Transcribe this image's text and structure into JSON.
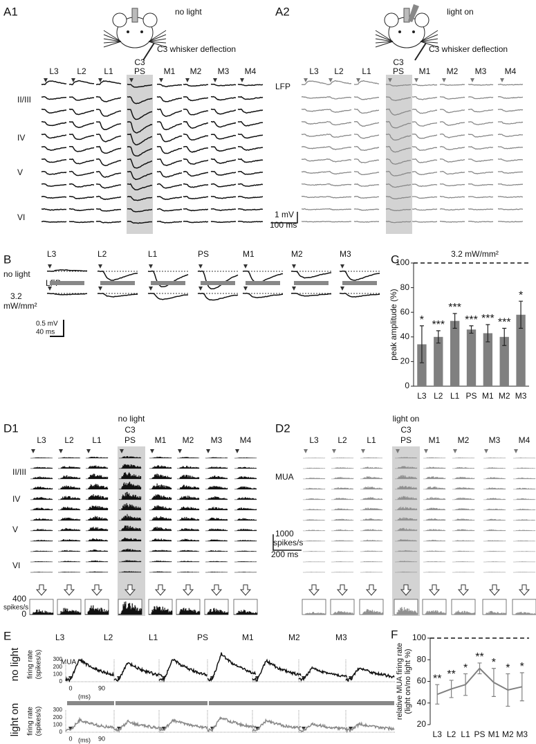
{
  "A1": {
    "label": "A1",
    "condition": "no light",
    "stimulus": "C3 whisker deflection",
    "barrel": "C3",
    "columns": [
      "L3",
      "L2",
      "L1",
      "PS",
      "M1",
      "M2",
      "M3",
      "M4"
    ],
    "layers": [
      "II/III",
      "IV",
      "V",
      "VI"
    ],
    "scale": [
      "1 mV",
      "100 ms"
    ]
  },
  "A2": {
    "label": "A2",
    "condition": "light on",
    "stimulus": "C3 whisker deflection",
    "barrel": "C3",
    "columns": [
      "L3",
      "L2",
      "L1",
      "PS",
      "M1",
      "M2",
      "M3",
      "M4"
    ],
    "signal": "LFP"
  },
  "B": {
    "label": "B",
    "columns": [
      "L3",
      "L2",
      "L1",
      "PS",
      "M1",
      "M2",
      "M3"
    ],
    "rows": [
      "no light",
      [
        "3.2",
        "mW/mm²"
      ]
    ],
    "signal": "LFP",
    "scale": [
      "0.5 mV",
      "40 ms"
    ]
  },
  "D1": {
    "label": "D1",
    "condition": "no light",
    "barrel": "C3",
    "columns": [
      "L3",
      "L2",
      "L1",
      "PS",
      "M1",
      "M2",
      "M3",
      "M4"
    ],
    "layers": [
      "II/III",
      "IV",
      "V",
      "VI"
    ],
    "yticks": [
      400,
      0
    ],
    "yunit": "spikes/s"
  },
  "D2": {
    "label": "D2",
    "condition": "light on",
    "barrel": "C3",
    "columns": [
      "L3",
      "L2",
      "L1",
      "PS",
      "M1",
      "M2",
      "M3",
      "M4"
    ],
    "signal": "MUA",
    "scale": [
      "1000",
      "spikes/s",
      "200 ms"
    ]
  },
  "E": {
    "label": "E",
    "columns": [
      "L3",
      "L2",
      "L1",
      "PS",
      "M1",
      "M2",
      "M3"
    ],
    "rows": [
      "no light",
      "light on"
    ],
    "ylabel": [
      "firing rate",
      "(spikes/s)"
    ],
    "signal": "MUA",
    "yticks": [
      300,
      200,
      100,
      0
    ],
    "xticks": [
      0,
      90
    ],
    "xunit": "(ms)"
  },
  "chart_data": [
    {
      "type": "bar",
      "panel": "C",
      "title": "3.2 mW/mm²",
      "ylabel": "peak amplitude (%)",
      "categories": [
        "L3",
        "L2",
        "L1",
        "PS",
        "M1",
        "M2",
        "M3"
      ],
      "values": [
        34,
        40,
        53,
        46,
        43,
        40,
        58
      ],
      "errors": [
        15,
        5,
        6,
        3,
        7,
        7,
        11
      ],
      "annotations": [
        "*",
        "***",
        "***",
        "***",
        "***",
        "***",
        "*"
      ],
      "ylim": [
        0,
        100
      ],
      "yticks": [
        0,
        20,
        40,
        60,
        80,
        100
      ],
      "reference_line": 100,
      "color": "#808080"
    },
    {
      "type": "line",
      "panel": "F",
      "ylabel": [
        "relative MUA firing rate",
        "(light on/no light %)"
      ],
      "categories": [
        "L3",
        "L2",
        "L1",
        "PS",
        "M1",
        "M2",
        "M3"
      ],
      "values": [
        48,
        53,
        57,
        72,
        59,
        52,
        55
      ],
      "errors": [
        9,
        8,
        10,
        5,
        13,
        15,
        13
      ],
      "annotations": [
        "**",
        "**",
        "*",
        "**",
        "*",
        "*",
        "*"
      ],
      "ylim": [
        20,
        100
      ],
      "yticks": [
        20,
        40,
        60,
        80,
        100
      ],
      "reference_line": 100,
      "color": "#808080"
    }
  ]
}
